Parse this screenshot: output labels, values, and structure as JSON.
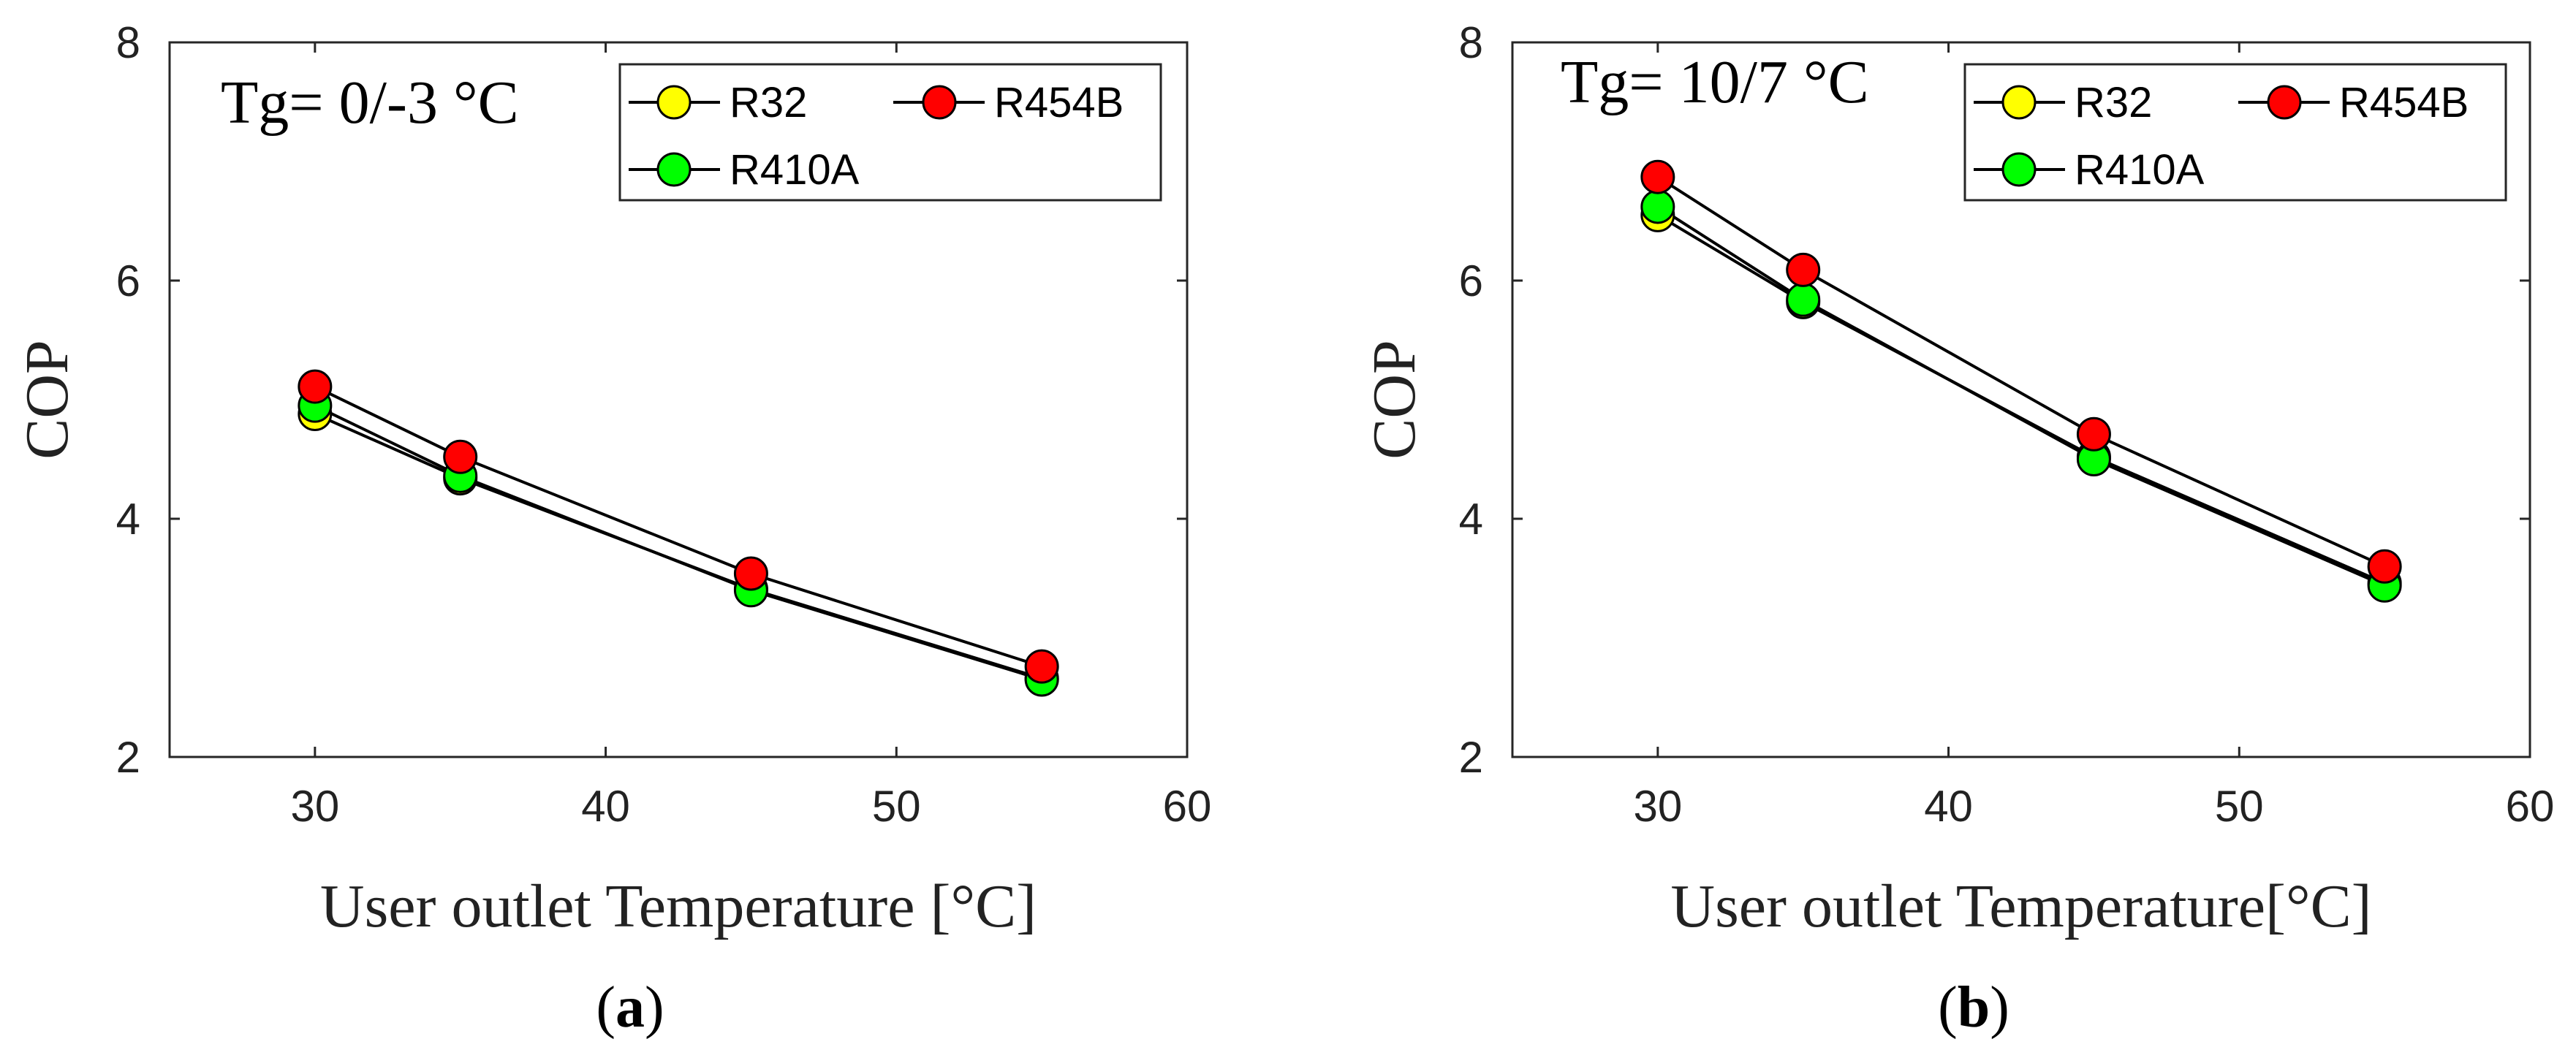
{
  "chart_data": [
    {
      "type": "line",
      "panel_label": "a",
      "annotation": "Tg= 0/-3 °C",
      "xlabel": "User outlet Temperature [°C]",
      "ylabel": "COP",
      "xlim": [
        25,
        60
      ],
      "ylim": [
        2,
        8
      ],
      "xticks": [
        30,
        40,
        50,
        60
      ],
      "yticks": [
        2,
        4,
        6,
        8
      ],
      "x": [
        30,
        35,
        45,
        55
      ],
      "series": [
        {
          "name": "R32",
          "color": "#ffff00",
          "values": [
            4.88,
            4.34,
            3.41,
            2.66
          ]
        },
        {
          "name": "R410A",
          "color": "#00ff00",
          "values": [
            4.95,
            4.36,
            3.4,
            2.65
          ]
        },
        {
          "name": "R454B",
          "color": "#ff0000",
          "values": [
            5.11,
            4.52,
            3.54,
            2.76
          ]
        }
      ],
      "legend": [
        "R32",
        "R454B",
        "R410A"
      ]
    },
    {
      "type": "line",
      "panel_label": "b",
      "annotation": "Tg= 10/7 °C",
      "xlabel": "User outlet Temperature[°C]",
      "ylabel": "COP",
      "xlim": [
        25,
        60
      ],
      "ylim": [
        2,
        8
      ],
      "xticks": [
        30,
        40,
        50,
        60
      ],
      "yticks": [
        2,
        4,
        6,
        8
      ],
      "x": [
        30,
        35,
        45,
        55
      ],
      "series": [
        {
          "name": "R32",
          "color": "#ffff00",
          "values": [
            6.55,
            5.82,
            4.52,
            3.46
          ]
        },
        {
          "name": "R410A",
          "color": "#00ff00",
          "values": [
            6.62,
            5.84,
            4.5,
            3.44
          ]
        },
        {
          "name": "R454B",
          "color": "#ff0000",
          "values": [
            6.87,
            6.09,
            4.71,
            3.6
          ]
        }
      ],
      "legend": [
        "R32",
        "R454B",
        "R410A"
      ]
    }
  ]
}
